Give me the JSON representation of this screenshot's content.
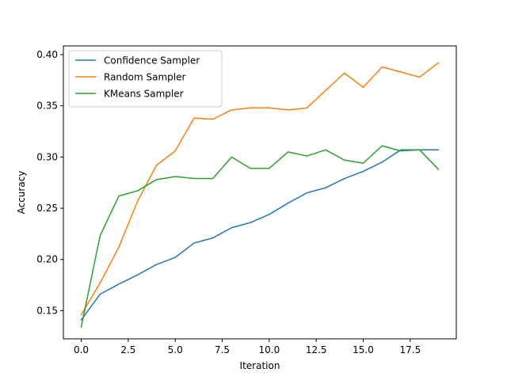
{
  "chart_data": {
    "type": "line",
    "title": "",
    "xlabel": "Iteration",
    "ylabel": "Accuracy",
    "xlim": [
      -0.95,
      19.95
    ],
    "ylim": [
      0.1225,
      0.4085
    ],
    "x_ticks": [
      0.0,
      2.5,
      5.0,
      7.5,
      10.0,
      12.5,
      15.0,
      17.5
    ],
    "x_tick_labels": [
      "0.0",
      "2.5",
      "5.0",
      "7.5",
      "10.0",
      "12.5",
      "15.0",
      "17.5"
    ],
    "y_ticks": [
      0.15,
      0.2,
      0.25,
      0.3,
      0.35,
      0.4
    ],
    "y_tick_labels": [
      "0.15",
      "0.20",
      "0.25",
      "0.30",
      "0.35",
      "0.40"
    ],
    "grid": false,
    "legend_position": "top-left",
    "x": [
      0,
      1,
      2,
      3,
      4,
      5,
      6,
      7,
      8,
      9,
      10,
      11,
      12,
      13,
      14,
      15,
      16,
      17,
      18,
      19
    ],
    "series": [
      {
        "name": "Confidence Sampler",
        "color": "#1f77b4",
        "values": [
          0.141,
          0.166,
          0.176,
          0.185,
          0.195,
          0.202,
          0.216,
          0.221,
          0.231,
          0.236,
          0.244,
          0.255,
          0.265,
          0.27,
          0.279,
          0.286,
          0.295,
          0.307,
          0.307,
          0.307
        ]
      },
      {
        "name": "Random Sampler",
        "color": "#ff7f0e",
        "values": [
          0.146,
          0.177,
          0.212,
          0.257,
          0.292,
          0.306,
          0.338,
          0.337,
          0.346,
          0.348,
          0.348,
          0.346,
          0.348,
          0.365,
          0.382,
          0.368,
          0.388,
          0.383,
          0.378,
          0.392
        ]
      },
      {
        "name": "KMeans Sampler",
        "color": "#2ca02c",
        "values": [
          0.134,
          0.223,
          0.262,
          0.267,
          0.278,
          0.281,
          0.279,
          0.279,
          0.3,
          0.289,
          0.289,
          0.305,
          0.301,
          0.307,
          0.297,
          0.294,
          0.311,
          0.306,
          0.307,
          0.288
        ]
      }
    ]
  }
}
